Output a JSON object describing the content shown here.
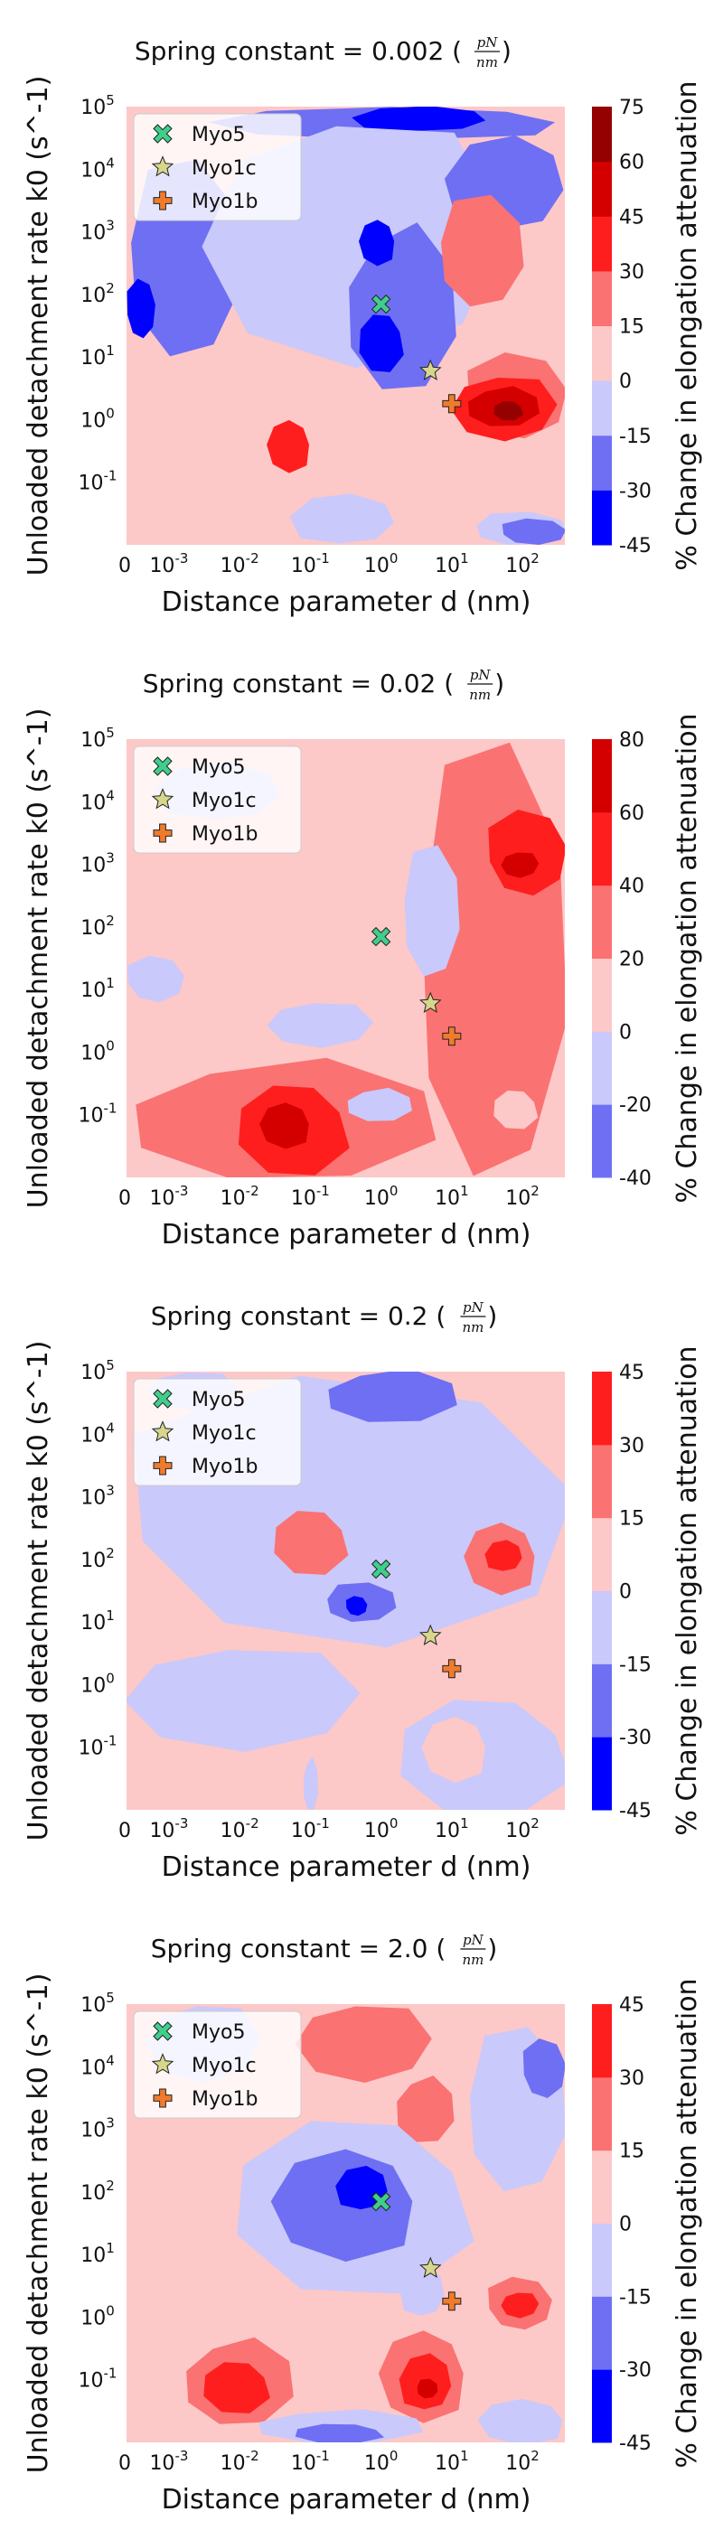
{
  "chart_data": [
    {
      "type": "heatmap",
      "title": "Spring constant = 0.002",
      "title_unit": {
        "numerator": "pN",
        "denominator": "nm"
      },
      "xlabel": "Distance parameter d (nm)",
      "ylabel": "Unloaded detachment rate k0 (s^-1)",
      "colorbar_label": "% Change in elongation attenuation",
      "colorbar_ticks": [
        -45,
        -30,
        -15,
        0,
        15,
        30,
        45,
        60,
        75
      ],
      "x_tick_labels": [
        "0",
        "10^-3",
        "10^-2",
        "10^-1",
        "10^0",
        "10^1",
        "10^2"
      ],
      "y_tick_labels": [
        "10^-1",
        "10^0",
        "10^1",
        "10^2",
        "10^3",
        "10^4",
        "10^5"
      ],
      "x_scale": "log",
      "y_scale": "log",
      "xlim_log10": [
        -3.6,
        2.6
      ],
      "ylim_log10": [
        -2.0,
        5.0
      ],
      "grid": false,
      "legend_position": "top-left",
      "points": [
        {
          "name": "Myo5",
          "x": 1.0,
          "y": 70
        },
        {
          "name": "Myo1c",
          "x": 5.0,
          "y": 6
        },
        {
          "name": "Myo1b",
          "x": 10.0,
          "y": 1.8
        }
      ],
      "regions": [
        {
          "level": -30,
          "x_log10": [
            -2.3,
            2.6
          ],
          "y_log10": [
            4.5,
            5.0
          ]
        },
        {
          "level": -45,
          "x_log10": [
            -0.3,
            1.5
          ],
          "y_log10": [
            4.6,
            5.0
          ]
        },
        {
          "level": -30,
          "x_log10": [
            -3.6,
            -2.0
          ],
          "y_log10": [
            1.0,
            4.0
          ]
        },
        {
          "level": -45,
          "x_log10": [
            -3.6,
            -3.2
          ],
          "y_log10": [
            1.3,
            2.2
          ]
        },
        {
          "level": -15,
          "x_log10": [
            -2.5,
            1.5
          ],
          "y_log10": [
            1.0,
            4.8
          ]
        },
        {
          "level": -30,
          "x_log10": [
            -0.5,
            1.0
          ],
          "y_log10": [
            0.5,
            3.0
          ]
        },
        {
          "level": -45,
          "x_log10": [
            -0.3,
            0.3
          ],
          "y_log10": [
            0.8,
            1.7
          ]
        },
        {
          "level": -45,
          "x_log10": [
            -0.3,
            0.2
          ],
          "y_log10": [
            2.5,
            3.2
          ]
        },
        {
          "level": -30,
          "x_log10": [
            1.0,
            2.6
          ],
          "y_log10": [
            3.0,
            4.5
          ]
        },
        {
          "level": 15,
          "x_log10": [
            0.8,
            2.0
          ],
          "y_log10": [
            1.8,
            3.5
          ]
        },
        {
          "level": 15,
          "x_log10": [
            1.2,
            2.6
          ],
          "y_log10": [
            -0.3,
            1.0
          ]
        },
        {
          "level": 30,
          "x_log10": [
            1.0,
            2.4
          ],
          "y_log10": [
            -0.3,
            0.7
          ]
        },
        {
          "level": 45,
          "x_log10": [
            1.2,
            2.2
          ],
          "y_log10": [
            -0.1,
            0.5
          ]
        },
        {
          "level": 60,
          "x_log10": [
            1.6,
            2.0
          ],
          "y_log10": [
            0.0,
            0.3
          ]
        },
        {
          "level": 30,
          "x_log10": [
            -1.6,
            -1.0
          ],
          "y_log10": [
            -0.8,
            0.0
          ]
        },
        {
          "level": -15,
          "x_log10": [
            -1.2,
            0.2
          ],
          "y_log10": [
            -2.0,
            -1.2
          ]
        },
        {
          "level": -15,
          "x_log10": [
            1.3,
            2.6
          ],
          "y_log10": [
            -2.0,
            -1.5
          ]
        },
        {
          "level": -30,
          "x_log10": [
            1.7,
            2.6
          ],
          "y_log10": [
            -2.0,
            -1.6
          ]
        }
      ]
    },
    {
      "type": "heatmap",
      "title": "Spring constant = 0.02",
      "title_unit": {
        "numerator": "pN",
        "denominator": "nm"
      },
      "xlabel": "Distance parameter d (nm)",
      "ylabel": "Unloaded detachment rate k0 (s^-1)",
      "colorbar_label": "% Change in elongation attenuation",
      "colorbar_ticks": [
        -40,
        -20,
        0,
        20,
        40,
        60,
        80
      ],
      "x_tick_labels": [
        "0",
        "10^-3",
        "10^-2",
        "10^-1",
        "10^0",
        "10^1",
        "10^2"
      ],
      "y_tick_labels": [
        "10^-1",
        "10^0",
        "10^1",
        "10^2",
        "10^3",
        "10^4",
        "10^5"
      ],
      "x_scale": "log",
      "y_scale": "log",
      "xlim_log10": [
        -3.6,
        2.6
      ],
      "ylim_log10": [
        -2.0,
        5.0
      ],
      "grid": false,
      "legend_position": "top-left",
      "points": [
        {
          "name": "Myo5",
          "x": 1.0,
          "y": 70
        },
        {
          "name": "Myo1c",
          "x": 5.0,
          "y": 6
        },
        {
          "name": "Myo1b",
          "x": 10.0,
          "y": 1.8
        }
      ],
      "regions": [
        {
          "level": 0,
          "x_log10": [
            -3.6,
            2.6
          ],
          "y_log10": [
            -2.0,
            5.0
          ]
        },
        {
          "level": 20,
          "x_log10": [
            0.5,
            2.6
          ],
          "y_log10": [
            -2.0,
            4.6
          ]
        },
        {
          "level": 40,
          "x_log10": [
            1.5,
            2.6
          ],
          "y_log10": [
            2.5,
            3.8
          ]
        },
        {
          "level": 60,
          "x_log10": [
            1.7,
            2.2
          ],
          "y_log10": [
            2.8,
            3.2
          ]
        },
        {
          "level": 20,
          "x_log10": [
            -3.6,
            0.6
          ],
          "y_log10": [
            -2.0,
            -0.2
          ]
        },
        {
          "level": 40,
          "x_log10": [
            -2.0,
            -0.5
          ],
          "y_log10": [
            -1.9,
            -0.5
          ]
        },
        {
          "level": 60,
          "x_log10": [
            -1.7,
            -1.0
          ],
          "y_log10": [
            -1.5,
            -0.8
          ]
        },
        {
          "level": -20,
          "x_log10": [
            -3.1,
            -1.4
          ],
          "y_log10": [
            3.7,
            4.6
          ]
        },
        {
          "level": -20,
          "x_log10": [
            0.3,
            1.1
          ],
          "y_log10": [
            1.2,
            3.2
          ]
        },
        {
          "level": -20,
          "x_log10": [
            -3.6,
            -2.8
          ],
          "y_log10": [
            0.8,
            1.5
          ]
        },
        {
          "level": -20,
          "x_log10": [
            -1.6,
            -0.2
          ],
          "y_log10": [
            0.1,
            0.8
          ]
        },
        {
          "level": -20,
          "x_log10": [
            -0.5,
            0.4
          ],
          "y_log10": [
            -1.1,
            -0.6
          ]
        },
        {
          "level": 0,
          "x_log10": [
            1.6,
            2.2
          ],
          "y_log10": [
            -1.2,
            -0.6
          ]
        }
      ]
    },
    {
      "type": "heatmap",
      "title": "Spring constant = 0.2",
      "title_unit": {
        "numerator": "pN",
        "denominator": "nm"
      },
      "xlabel": "Distance parameter d (nm)",
      "ylabel": "Unloaded detachment rate k0 (s^-1)",
      "colorbar_label": "% Change in elongation attenuation",
      "colorbar_ticks": [
        -45,
        -30,
        -15,
        0,
        15,
        30,
        45
      ],
      "x_tick_labels": [
        "0",
        "10^-3",
        "10^-2",
        "10^-1",
        "10^0",
        "10^1",
        "10^2"
      ],
      "y_tick_labels": [
        "10^-1",
        "10^0",
        "10^1",
        "10^2",
        "10^3",
        "10^4",
        "10^5"
      ],
      "x_scale": "log",
      "y_scale": "log",
      "xlim_log10": [
        -3.6,
        2.6
      ],
      "ylim_log10": [
        -2.0,
        5.0
      ],
      "grid": false,
      "legend_position": "top-left",
      "points": [
        {
          "name": "Myo5",
          "x": 1.0,
          "y": 70
        },
        {
          "name": "Myo1c",
          "x": 5.0,
          "y": 6
        },
        {
          "name": "Myo1b",
          "x": 10.0,
          "y": 1.8
        }
      ],
      "regions": [
        {
          "level": 0,
          "x_log10": [
            -3.6,
            2.6
          ],
          "y_log10": [
            0.5,
            5.0
          ]
        },
        {
          "level": -15,
          "x_log10": [
            -3.6,
            2.6
          ],
          "y_log10": [
            0.6,
            4.7
          ]
        },
        {
          "level": -15,
          "x_log10": [
            -3.3,
            -2.1
          ],
          "y_log10": [
            4.4,
            5.0
          ]
        },
        {
          "level": -30,
          "x_log10": [
            -0.8,
            1.0
          ],
          "y_log10": [
            4.2,
            5.0
          ]
        },
        {
          "level": 15,
          "x_log10": [
            -1.5,
            -0.5
          ],
          "y_log10": [
            1.8,
            2.8
          ]
        },
        {
          "level": 15,
          "x_log10": [
            1.2,
            2.2
          ],
          "y_log10": [
            1.5,
            2.6
          ]
        },
        {
          "level": 30,
          "x_log10": [
            1.5,
            2.0
          ],
          "y_log10": [
            1.8,
            2.3
          ]
        },
        {
          "level": -30,
          "x_log10": [
            -0.8,
            0.2
          ],
          "y_log10": [
            1.0,
            1.6
          ]
        },
        {
          "level": -45,
          "x_log10": [
            -0.5,
            -0.2
          ],
          "y_log10": [
            1.1,
            1.4
          ]
        },
        {
          "level": -15,
          "x_log10": [
            -3.6,
            -0.5
          ],
          "y_log10": [
            -1.0,
            0.6
          ]
        },
        {
          "level": -15,
          "x_log10": [
            -1.1,
            -0.9
          ],
          "y_log10": [
            -2.0,
            -1.2
          ]
        },
        {
          "level": -15,
          "x_log10": [
            0.3,
            2.6
          ],
          "y_log10": [
            -2.0,
            -0.2
          ]
        },
        {
          "level": 0,
          "x_log10": [
            0.6,
            1.5
          ],
          "y_log10": [
            -1.5,
            -0.5
          ]
        }
      ]
    },
    {
      "type": "heatmap",
      "title": "Spring constant = 2.0",
      "title_unit": {
        "numerator": "pN",
        "denominator": "nm"
      },
      "xlabel": "Distance parameter d (nm)",
      "ylabel": "Unloaded detachment rate k0 (s^-1)",
      "colorbar_label": "% Change in elongation attenuation",
      "colorbar_ticks": [
        -45,
        -30,
        -15,
        0,
        15,
        30,
        45
      ],
      "x_tick_labels": [
        "0",
        "10^-3",
        "10^-2",
        "10^-1",
        "10^0",
        "10^1",
        "10^2"
      ],
      "y_tick_labels": [
        "10^-1",
        "10^0",
        "10^1",
        "10^2",
        "10^3",
        "10^4",
        "10^5"
      ],
      "x_scale": "log",
      "y_scale": "log",
      "xlim_log10": [
        -3.6,
        2.6
      ],
      "ylim_log10": [
        -2.0,
        5.0
      ],
      "grid": false,
      "legend_position": "top-left",
      "points": [
        {
          "name": "Myo5",
          "x": 1.0,
          "y": 70
        },
        {
          "name": "Myo1c",
          "x": 5.0,
          "y": 6
        },
        {
          "name": "Myo1b",
          "x": 10.0,
          "y": 1.8
        }
      ],
      "regions": [
        {
          "level": 0,
          "x_log10": [
            -3.6,
            2.6
          ],
          "y_log10": [
            -1.8,
            5.0
          ]
        },
        {
          "level": 15,
          "x_log10": [
            -1.2,
            0.6
          ],
          "y_log10": [
            3.8,
            5.0
          ]
        },
        {
          "level": 15,
          "x_log10": [
            0.2,
            1.0
          ],
          "y_log10": [
            2.8,
            3.8
          ]
        },
        {
          "level": -15,
          "x_log10": [
            -2.0,
            1.2
          ],
          "y_log10": [
            0.5,
            3.2
          ]
        },
        {
          "level": -30,
          "x_log10": [
            -1.5,
            0.5
          ],
          "y_log10": [
            1.0,
            2.7
          ]
        },
        {
          "level": -45,
          "x_log10": [
            -0.6,
            0.1
          ],
          "y_log10": [
            1.7,
            2.4
          ]
        },
        {
          "level": -15,
          "x_log10": [
            1.2,
            2.6
          ],
          "y_log10": [
            2.0,
            4.5
          ]
        },
        {
          "level": -30,
          "x_log10": [
            2.0,
            2.6
          ],
          "y_log10": [
            3.5,
            4.4
          ]
        },
        {
          "level": -15,
          "x_log10": [
            -3.3,
            -1.8
          ],
          "y_log10": [
            3.8,
            5.0
          ]
        },
        {
          "level": 15,
          "x_log10": [
            -2.8,
            -1.3
          ],
          "y_log10": [
            -1.7,
            -0.4
          ]
        },
        {
          "level": 30,
          "x_log10": [
            -2.5,
            -1.6
          ],
          "y_log10": [
            -1.5,
            -0.7
          ]
        },
        {
          "level": 15,
          "x_log10": [
            0.0,
            1.2
          ],
          "y_log10": [
            -1.6,
            -0.2
          ]
        },
        {
          "level": 30,
          "x_log10": [
            0.3,
            1.0
          ],
          "y_log10": [
            -1.5,
            -0.6
          ]
        },
        {
          "level": 45,
          "x_log10": [
            0.5,
            0.8
          ],
          "y_log10": [
            -1.3,
            -1.0
          ]
        },
        {
          "level": 15,
          "x_log10": [
            1.5,
            2.4
          ],
          "y_log10": [
            -0.2,
            0.6
          ]
        },
        {
          "level": 30,
          "x_log10": [
            1.7,
            2.2
          ],
          "y_log10": [
            0.0,
            0.4
          ]
        },
        {
          "level": -15,
          "x_log10": [
            -1.8,
            0.5
          ],
          "y_log10": [
            -2.0,
            -1.5
          ]
        },
        {
          "level": -30,
          "x_log10": [
            -1.2,
            0.0
          ],
          "y_log10": [
            -2.0,
            -1.7
          ]
        },
        {
          "level": -15,
          "x_log10": [
            1.4,
            2.6
          ],
          "y_log10": [
            -2.0,
            -1.3
          ]
        },
        {
          "level": -15,
          "x_log10": [
            0.3,
            0.9
          ],
          "y_log10": [
            0.0,
            0.8
          ]
        }
      ]
    }
  ],
  "legend": {
    "items": [
      {
        "name": "Myo5",
        "marker": "x-marker",
        "color": "#3fcf8a"
      },
      {
        "name": "Myo1c",
        "marker": "star-marker",
        "color": "#d6d68c"
      },
      {
        "name": "Myo1b",
        "marker": "plus-marker",
        "color": "#ef7b2c"
      }
    ]
  },
  "palette": {
    "neg3": "#0000ff",
    "neg2": "#6f6ff3",
    "neg1": "#c9c9fb",
    "pos1": "#fdc8c8",
    "pos2": "#fa7272",
    "pos3": "#fe1e1e",
    "pos4": "#d40000",
    "pos5": "#950000"
  }
}
